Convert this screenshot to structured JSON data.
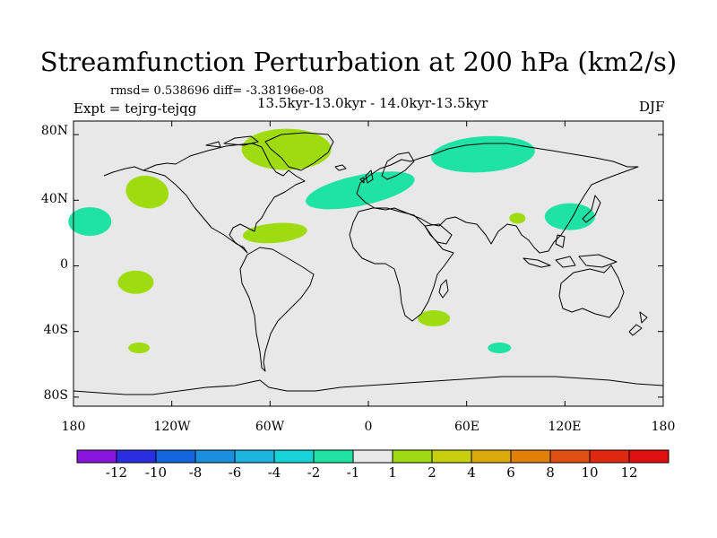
{
  "title": "Streamfunction Perturbation at 200 hPa (km2/s)",
  "stats_line": "rmsd= 0.538696 diff= -3.38196e-08",
  "period_line": "13.5kyr-13.0kyr - 14.0kyr-13.5kyr",
  "experiment_line": "Expt = tejrg-tejqg",
  "season": "DJF",
  "lat_labels": [
    "80N",
    "40N",
    "0",
    "40S",
    "80S"
  ],
  "lon_labels": [
    "180",
    "120W",
    "60W",
    "0",
    "60E",
    "120E",
    "180"
  ],
  "colors": {
    "ocean_background": "#e8e8e8",
    "coastline": "#000000",
    "anomaly_neg1": "#1ee3a2",
    "anomaly_pos1": "#9fdc0f"
  },
  "colorbar": {
    "labels": [
      "-12",
      "-10",
      "-8",
      "-6",
      "-4",
      "-2",
      "-1",
      "1",
      "2",
      "4",
      "6",
      "8",
      "10",
      "12"
    ],
    "colors": [
      "#8a16dc",
      "#2a2ee0",
      "#1466e0",
      "#1a8fe0",
      "#1eb4e0",
      "#15d3d6",
      "#1ee3a2",
      "#e8e8e8",
      "#9fdc0f",
      "#c8d00e",
      "#dcaa08",
      "#e08008",
      "#e05010",
      "#e02810",
      "#e01010"
    ]
  },
  "anomalies": [
    {
      "name": "north-pacific-neg",
      "lon": -170,
      "lat": 27,
      "value": -1
    },
    {
      "name": "subtropical-north-pacific-pos",
      "lon": -135,
      "lat": 45,
      "value": 1
    },
    {
      "name": "tropical-pacific-pos",
      "lon": -142,
      "lat": -10,
      "value": 1
    },
    {
      "name": "south-pacific-pos",
      "lon": -140,
      "lat": -50,
      "value": 1
    },
    {
      "name": "greenland-pos",
      "lon": -50,
      "lat": 71,
      "value": 1
    },
    {
      "name": "subtropical-atlantic-pos",
      "lon": -57,
      "lat": 20,
      "value": 1
    },
    {
      "name": "north-atlantic-europe-neg",
      "lon": -5,
      "lat": 46,
      "value": -1
    },
    {
      "name": "siberia-neg",
      "lon": 70,
      "lat": 68,
      "value": -1
    },
    {
      "name": "india-pos",
      "lon": 91,
      "lat": 29,
      "value": 1
    },
    {
      "name": "japan-neg",
      "lon": 123,
      "lat": 30,
      "value": -1
    },
    {
      "name": "south-africa-pos",
      "lon": 40,
      "lat": -32,
      "value": 1
    },
    {
      "name": "southern-indian-ocean-neg",
      "lon": 80,
      "lat": -50,
      "value": -1
    }
  ]
}
